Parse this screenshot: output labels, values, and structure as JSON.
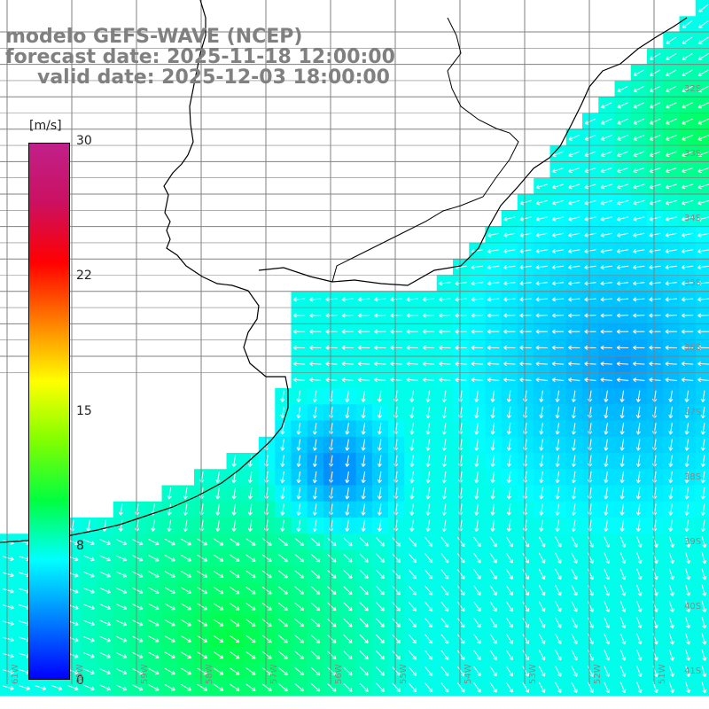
{
  "title": {
    "line1": "modelo GEFS-WAVE (NCEP)",
    "line2": "forecast date: 2025-11-18 12:00:00",
    "line3": "valid date: 2025-12-03 18:00:00"
  },
  "colorbar": {
    "unit": "[m/s]",
    "ticks": [
      "30",
      "22",
      "15",
      "8",
      "0"
    ],
    "tick_values": [
      30,
      22,
      15,
      8,
      0
    ],
    "range": [
      0,
      30
    ],
    "colors": [
      "#0000ff",
      "#0080ff",
      "#00ffff",
      "#00ff40",
      "#80ff00",
      "#ffff00",
      "#ff8000",
      "#ff0000",
      "#cc1060",
      "#c0208a"
    ]
  },
  "lat_labels": [
    "32S",
    "33S",
    "34S",
    "35S",
    "36S",
    "37S",
    "38S",
    "39S",
    "40S",
    "41S"
  ],
  "lon_labels": [
    "61W",
    "60W",
    "59W",
    "58W",
    "57W",
    "56W",
    "55W",
    "54W",
    "53W",
    "52W",
    "51W"
  ],
  "colors": {
    "land": "#ffffff",
    "grid": "#808080",
    "coast": "#000000",
    "arrow": "#ffffff",
    "title": "#808080"
  }
}
